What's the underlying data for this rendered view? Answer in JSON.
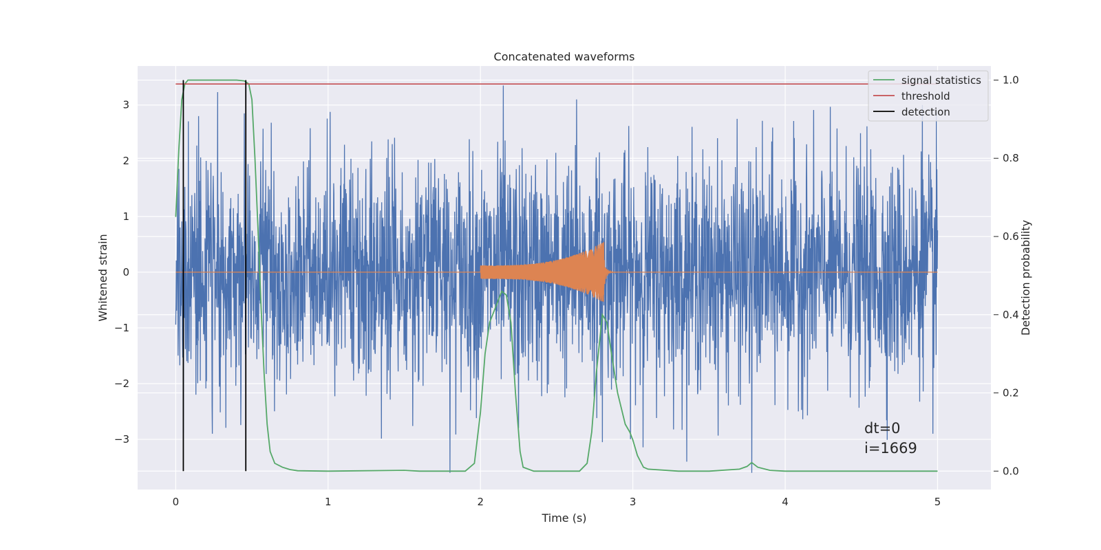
{
  "chart_data": {
    "type": "line",
    "title": "Concatenated waveforms",
    "xlabel": "Time (s)",
    "ylabel": "Whitened strain",
    "y2label": "Detection probability",
    "xlim": [
      -0.25,
      5.35
    ],
    "ylim": [
      -3.9,
      3.7
    ],
    "y2lim": [
      -0.047,
      1.036
    ],
    "x_ticks": [
      0,
      1,
      2,
      3,
      4,
      5
    ],
    "y_ticks": [
      -3,
      -2,
      -1,
      0,
      1,
      2,
      3
    ],
    "y2_ticks": [
      0.0,
      0.2,
      0.4,
      0.6,
      0.8,
      1.0
    ],
    "y2_tick_labels": [
      "0.0",
      "0.2",
      "0.4",
      "0.6",
      "0.8",
      "1.0"
    ],
    "grid": true,
    "legend_position": "top-right",
    "colors": {
      "plot_bg": "#eaeaf2",
      "grid": "#ffffff",
      "strain": "#4c72b0",
      "injected_signal": "#dd8452",
      "signal_statistics": "#55a868",
      "threshold": "#c44e52",
      "detection": "#000000"
    },
    "series": [
      {
        "name": "",
        "role": "whitened strain (noise)",
        "axis": "left",
        "x_range": [
          0,
          5
        ],
        "typical_amplitude": 1.0,
        "peaks": [
          {
            "x": 0.45,
            "y": 2.85
          },
          {
            "x": 0.15,
            "y": 2.8
          },
          {
            "x": 2.15,
            "y": 3.35
          },
          {
            "x": 2.63,
            "y": 3.1
          },
          {
            "x": 4.9,
            "y": 3.0
          },
          {
            "x": 1.8,
            "y": -3.6
          },
          {
            "x": 3.78,
            "y": -3.6
          },
          {
            "x": 2.8,
            "y": -3.05
          },
          {
            "x": 4.97,
            "y": -2.9
          },
          {
            "x": 0.24,
            "y": -2.9
          },
          {
            "x": 2.25,
            "y": -2.8
          }
        ]
      },
      {
        "name": "",
        "role": "injected chirp signal",
        "axis": "left",
        "x_start": 2.0,
        "x_merger": 2.81,
        "start_amplitude": 0.12,
        "peak_amplitude": 0.55
      },
      {
        "name": "signal statistics",
        "axis": "right",
        "x": [
          0.0,
          0.02,
          0.04,
          0.06,
          0.08,
          0.1,
          0.2,
          0.3,
          0.4,
          0.45,
          0.48,
          0.5,
          0.52,
          0.54,
          0.56,
          0.58,
          0.6,
          0.62,
          0.65,
          0.7,
          0.75,
          0.8,
          1.0,
          1.5,
          1.6,
          1.9,
          1.96,
          2.0,
          2.03,
          2.06,
          2.1,
          2.14,
          2.17,
          2.2,
          2.23,
          2.26,
          2.28,
          2.35,
          2.5,
          2.65,
          2.7,
          2.73,
          2.76,
          2.8,
          2.83,
          2.86,
          2.9,
          2.95,
          2.98,
          3.0,
          3.03,
          3.07,
          3.1,
          3.3,
          3.5,
          3.7,
          3.75,
          3.78,
          3.82,
          3.9,
          4.0,
          4.5,
          5.0
        ],
        "values": [
          0.65,
          0.82,
          0.95,
          0.99,
          1.0,
          1.0,
          1.0,
          1.0,
          1.0,
          0.998,
          0.99,
          0.95,
          0.8,
          0.62,
          0.42,
          0.25,
          0.12,
          0.05,
          0.02,
          0.01,
          0.004,
          0.001,
          0.0,
          0.002,
          0.0,
          0.0,
          0.02,
          0.15,
          0.3,
          0.38,
          0.42,
          0.46,
          0.45,
          0.38,
          0.2,
          0.05,
          0.01,
          0.0,
          0.0,
          0.0,
          0.02,
          0.1,
          0.25,
          0.4,
          0.38,
          0.3,
          0.2,
          0.12,
          0.1,
          0.08,
          0.04,
          0.01,
          0.005,
          0.0,
          0.0,
          0.005,
          0.012,
          0.022,
          0.01,
          0.002,
          0.0,
          0.0,
          0.0
        ]
      },
      {
        "name": "threshold",
        "axis": "right",
        "x": [
          0,
          5
        ],
        "values": [
          0.99,
          0.99
        ]
      },
      {
        "name": "detection",
        "axis": "right",
        "x": [
          0.05,
          0.46
        ],
        "type": "vertical_lines",
        "y_range": [
          0.0,
          1.0
        ]
      }
    ],
    "annotations": [
      "dt=0",
      "i=1669"
    ]
  }
}
